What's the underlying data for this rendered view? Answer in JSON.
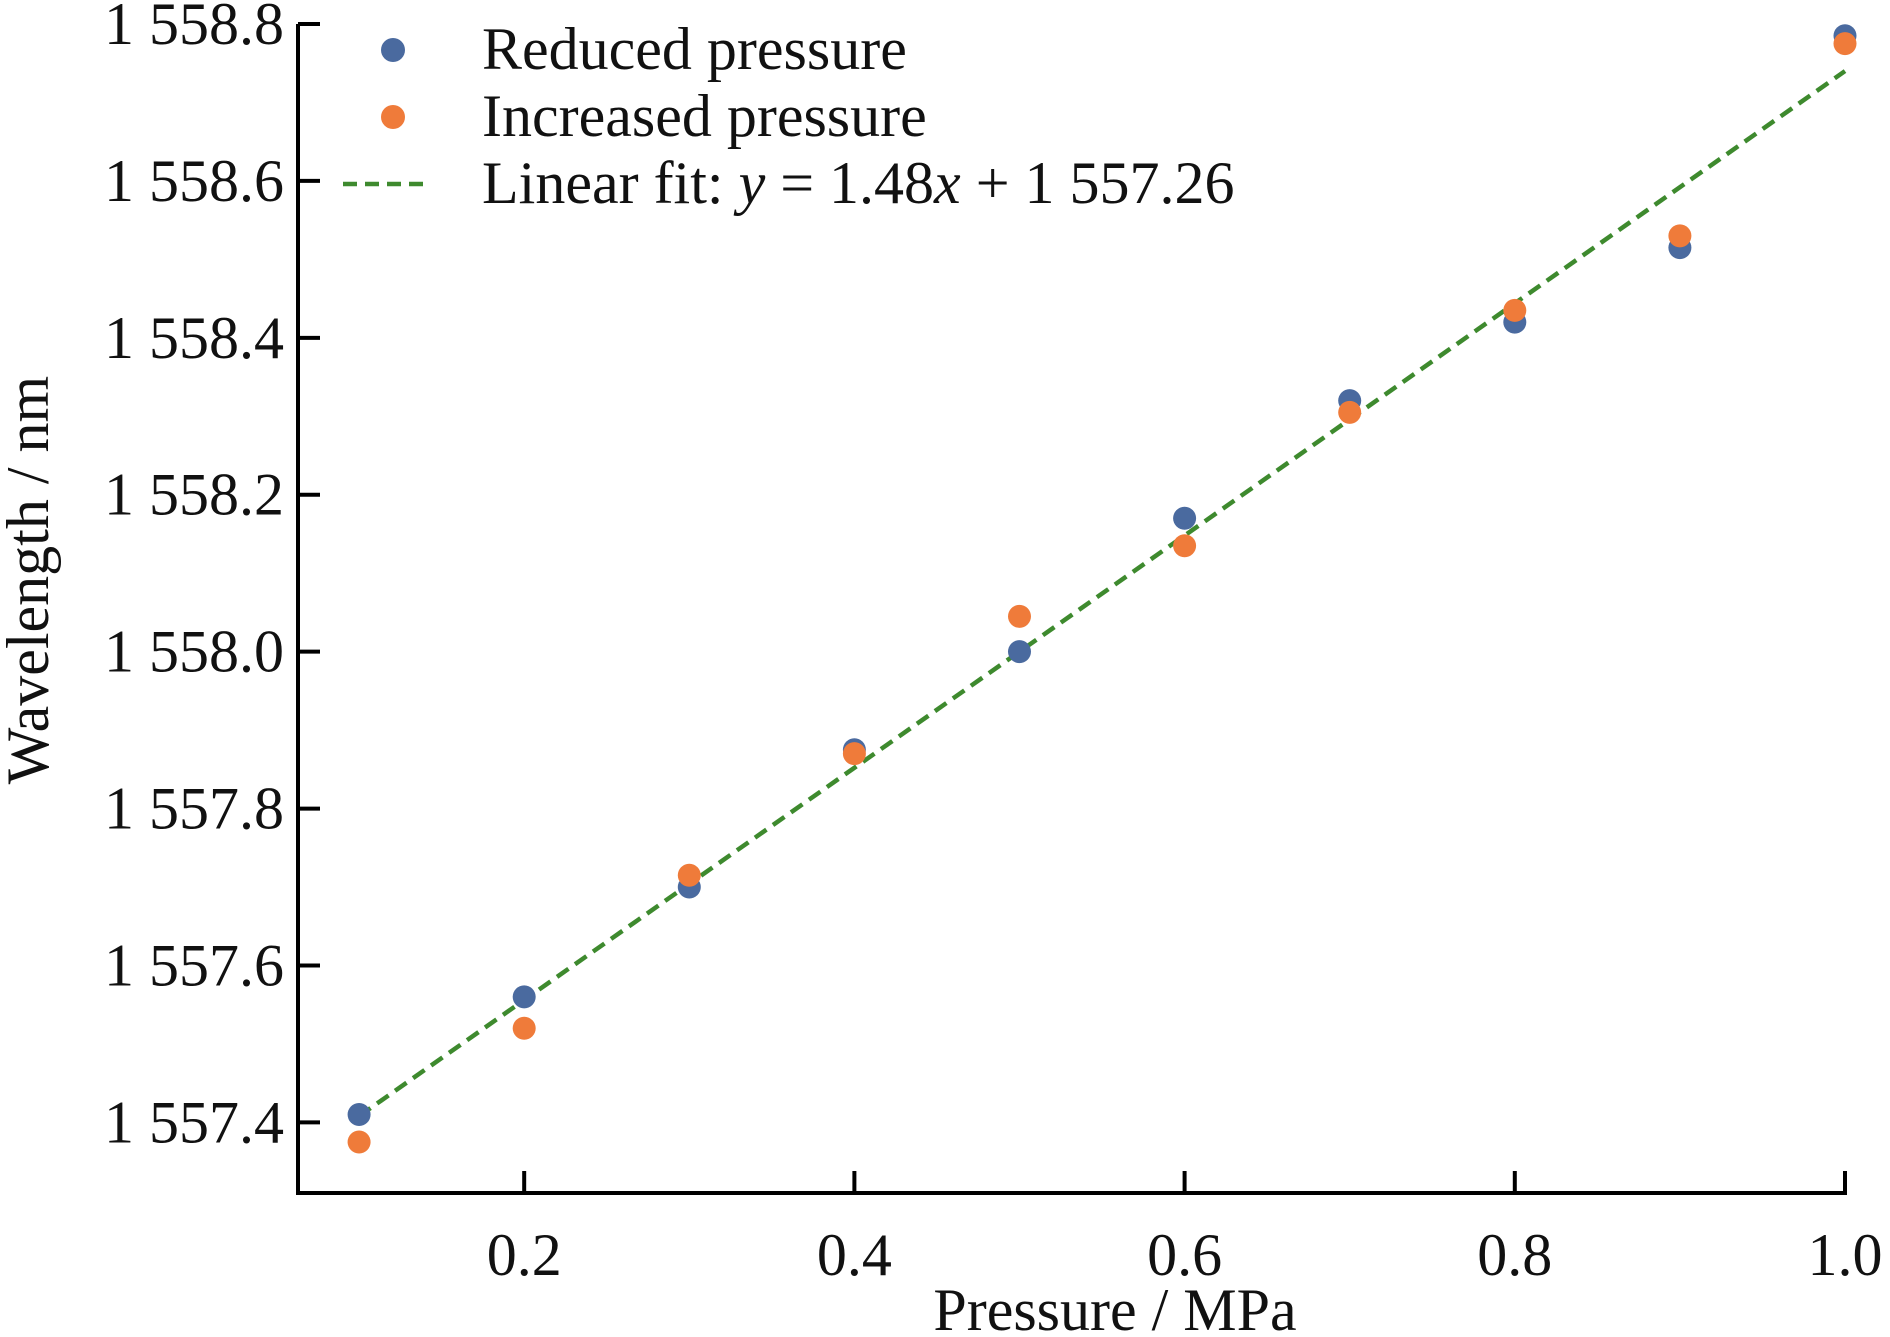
{
  "chart_data": {
    "type": "scatter",
    "title": "",
    "xlabel": "Pressure / MPa",
    "ylabel": "Wavelength / nm",
    "xlim": [
      0.063,
      1.0
    ],
    "ylim": [
      1557.31,
      1558.8
    ],
    "x_ticks": [
      0.2,
      0.4,
      0.6,
      0.8,
      1.0
    ],
    "x_tick_labels": [
      "0.2",
      "0.4",
      "0.6",
      "0.8",
      "1.0"
    ],
    "y_ticks": [
      1557.4,
      1557.6,
      1557.8,
      1558.0,
      1558.2,
      1558.4,
      1558.6,
      1558.8
    ],
    "y_tick_labels": [
      "1 557.4",
      "1 557.6",
      "1 557.8",
      "1 558.0",
      "1 558.2",
      "1 558.4",
      "1 558.6",
      "1 558.8"
    ],
    "grid": false,
    "legend_position": "top-left",
    "series": [
      {
        "name": "Reduced pressure",
        "color": "#4a6a9f",
        "x": [
          0.1,
          0.2,
          0.3,
          0.4,
          0.5,
          0.6,
          0.7,
          0.8,
          0.9,
          1.0
        ],
        "y": [
          1557.41,
          1557.56,
          1557.7,
          1557.875,
          1558.0,
          1558.17,
          1558.32,
          1558.42,
          1558.515,
          1558.785
        ]
      },
      {
        "name": "Increased pressure",
        "color": "#ef7b3a",
        "x": [
          0.1,
          0.2,
          0.3,
          0.4,
          0.5,
          0.6,
          0.7,
          0.8,
          0.9,
          1.0
        ],
        "y": [
          1557.375,
          1557.52,
          1557.715,
          1557.87,
          1558.045,
          1558.135,
          1558.305,
          1558.435,
          1558.53,
          1558.775
        ]
      }
    ],
    "fit": {
      "legend_prefix": "Linear fit: ",
      "legend_y": "y",
      "legend_mid": " = 1.48",
      "legend_x": "x",
      "legend_suffix": " + 1 557.26",
      "slope": 1.48,
      "intercept": 1557.26,
      "x_range": [
        0.1,
        1.0
      ],
      "color": "#3e8a2e"
    }
  }
}
